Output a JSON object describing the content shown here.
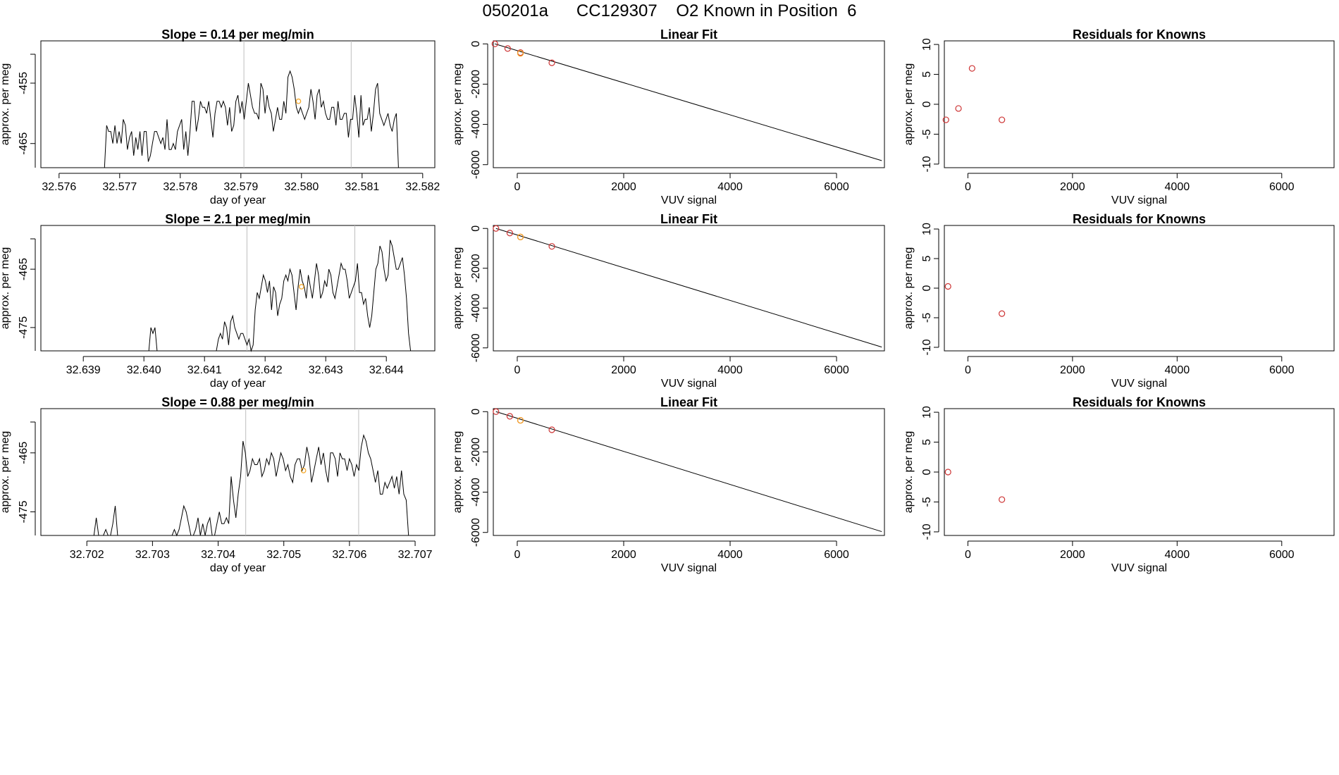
{
  "page": {
    "title": "050201a      CC129307    O2 Known in Position  6"
  },
  "colors": {
    "trace": "#000000",
    "fit_line": "#000000",
    "known": "#cd3333",
    "sample": "#f5a623",
    "marker_line": "#bebebe"
  },
  "chart_data": [
    {
      "type": "line",
      "panel": "row1-timeseries",
      "title": "Slope =  0.14  per meg/min",
      "xlabel": "day of year",
      "ylabel": "approx. per meg",
      "xlim": [
        32.5757,
        32.5822
      ],
      "ylim": [
        -469,
        -448
      ],
      "xticks": [
        "32.576",
        "32.577",
        "32.578",
        "32.579",
        "32.580",
        "32.581",
        "32.582"
      ],
      "xtick_values": [
        32.576,
        32.577,
        32.578,
        32.579,
        32.58,
        32.581,
        32.582
      ],
      "yticks": [
        "-465",
        "-455"
      ],
      "ytick_values": [
        -465,
        -455
      ],
      "vlines": [
        32.57905,
        32.58082
      ],
      "x_start": 32.57675,
      "x_end": 32.5816,
      "series": [
        {
          "values": [
            -469,
            -462,
            -463,
            -463,
            -465,
            -462,
            -465,
            -463,
            -465,
            -461,
            -462,
            -466,
            -464,
            -463,
            -467,
            -464,
            -466,
            -463,
            -467,
            -463,
            -463,
            -468,
            -467,
            -465,
            -463,
            -463,
            -464,
            -465,
            -464,
            -466,
            -461,
            -466,
            -466,
            -465,
            -466,
            -463,
            -462,
            -461,
            -466,
            -463,
            -467,
            -463,
            -458,
            -458,
            -463,
            -461,
            -458,
            -459,
            -459,
            -460,
            -458,
            -461,
            -464,
            -460,
            -458,
            -458,
            -459,
            -458,
            -459,
            -462,
            -459,
            -463,
            -462,
            -458,
            -457,
            -460,
            -458,
            -461,
            -458,
            -455,
            -457,
            -459,
            -460,
            -460,
            -461,
            -455,
            -456,
            -460,
            -457,
            -459,
            -460,
            -463,
            -461,
            -459,
            -461,
            -461,
            -458,
            -460,
            -454,
            -453,
            -454,
            -456,
            -459,
            -460,
            -459,
            -460,
            -461,
            -460,
            -459,
            -456,
            -458,
            -461,
            -457,
            -456,
            -459,
            -458,
            -460,
            -461,
            -461,
            -459,
            -459,
            -462,
            -458,
            -461,
            -461,
            -460,
            -460,
            -464,
            -461,
            -461,
            -457,
            -460,
            -464,
            -457,
            -462,
            -461,
            -461,
            -459,
            -463,
            -460,
            -456,
            -455,
            -460,
            -461,
            -462,
            -461,
            -460,
            -462,
            -463,
            -461,
            -460,
            -469
          ]
        }
      ],
      "sample_point": {
        "x": 32.57995,
        "y": -458
      }
    },
    {
      "type": "scatter",
      "panel": "row1-linear-fit",
      "title": "Linear Fit",
      "xlabel": "VUV signal",
      "ylabel": "approx. per meg",
      "xlim": [
        -450,
        6900
      ],
      "ylim": [
        -6150,
        150
      ],
      "xticks": [
        "0",
        "2000",
        "4000",
        "6000"
      ],
      "xtick_values": [
        0,
        2000,
        4000,
        6000
      ],
      "yticks": [
        "-6000",
        "-4000",
        "-2000",
        "0"
      ],
      "ytick_values": [
        -6000,
        -4000,
        -2000,
        0
      ],
      "fit_line": {
        "x": [
          -420,
          6850
        ],
        "y": [
          0,
          -5800
        ]
      },
      "knowns": {
        "x": [
          -420,
          -180,
          60,
          650
        ],
        "y": [
          0,
          -230,
          -430,
          -940
        ]
      },
      "sample_point": {
        "x": 60,
        "y": -470
      }
    },
    {
      "type": "scatter",
      "panel": "row1-residuals",
      "title": "Residuals for Knowns",
      "xlabel": "VUV signal",
      "ylabel": "approx. per meg",
      "xlim": [
        -450,
        7000
      ],
      "ylim": [
        -10.6,
        10.6
      ],
      "xticks": [
        "0",
        "2000",
        "4000",
        "6000"
      ],
      "xtick_values": [
        0,
        2000,
        4000,
        6000
      ],
      "yticks": [
        "-10",
        "-5",
        "0",
        "5",
        "10"
      ],
      "ytick_values": [
        -10,
        -5,
        0,
        5,
        10
      ],
      "knowns": {
        "x": [
          -420,
          -180,
          80,
          650
        ],
        "y": [
          -2.6,
          -0.7,
          6.0,
          -2.6
        ]
      }
    },
    {
      "type": "line",
      "panel": "row2-timeseries",
      "title": "Slope =  2.1  per meg/min",
      "xlabel": "day of year",
      "ylabel": "approx. per meg",
      "xlim": [
        32.6383,
        32.6448
      ],
      "ylim": [
        -479,
        -457.5
      ],
      "xticks": [
        "32.639",
        "32.640",
        "32.641",
        "32.642",
        "32.643",
        "32.644"
      ],
      "xtick_values": [
        32.639,
        32.64,
        32.641,
        32.642,
        32.643,
        32.644
      ],
      "yticks": [
        "-475",
        "-465"
      ],
      "ytick_values": [
        -475,
        -465
      ],
      "vlines": [
        32.6417,
        32.64348
      ],
      "x_start": 32.6388,
      "x_end": 32.6444,
      "series": [
        {
          "values": [
            -479,
            -479,
            -479,
            -479,
            -479,
            -479,
            -479,
            -479,
            -479,
            -479,
            -479,
            -479,
            -479,
            -479,
            -479,
            -479,
            -479,
            -479,
            -479,
            -479,
            -479,
            -479,
            -479,
            -479,
            -479,
            -479,
            -479,
            -479,
            -479,
            -479,
            -479,
            -479,
            -479,
            -479,
            -479,
            -479,
            -479,
            -479,
            -479,
            -475,
            -476,
            -475,
            -479,
            -479,
            -479,
            -479,
            -479,
            -479,
            -479,
            -479,
            -479,
            -479,
            -479,
            -479,
            -479,
            -479,
            -479,
            -479,
            -479,
            -479,
            -479,
            -479,
            -479,
            -479,
            -479,
            -479,
            -479,
            -479,
            -479,
            -479,
            -479,
            -479,
            -477,
            -476,
            -477,
            -474,
            -475,
            -478,
            -474,
            -473,
            -475,
            -476,
            -477,
            -476,
            -476,
            -477,
            -478,
            -477,
            -479,
            -478,
            -472,
            -469,
            -470,
            -468,
            -466,
            -467,
            -469,
            -467,
            -472,
            -468,
            -469,
            -473,
            -471,
            -470,
            -467,
            -466,
            -467,
            -465,
            -466,
            -469,
            -472,
            -468,
            -465,
            -467,
            -468,
            -470,
            -466,
            -468,
            -470,
            -467,
            -464,
            -466,
            -470,
            -469,
            -467,
            -468,
            -465,
            -466,
            -469,
            -470,
            -468,
            -466,
            -464,
            -465,
            -465,
            -467,
            -470,
            -469,
            -468,
            -467,
            -464,
            -469,
            -469,
            -471,
            -470,
            -473,
            -475,
            -473,
            -469,
            -465,
            -464,
            -461,
            -462,
            -465,
            -467,
            -466,
            -460,
            -461,
            -463,
            -465,
            -465,
            -464,
            -463,
            -466,
            -470,
            -476,
            -479
          ]
        }
      ],
      "sample_point": {
        "x": 32.6426,
        "y": -468
      }
    },
    {
      "type": "scatter",
      "panel": "row2-linear-fit",
      "title": "Linear Fit",
      "xlabel": "VUV signal",
      "ylabel": "approx. per meg",
      "xlim": [
        -450,
        6900
      ],
      "ylim": [
        -6150,
        150
      ],
      "xticks": [
        "0",
        "2000",
        "4000",
        "6000"
      ],
      "xtick_values": [
        0,
        2000,
        4000,
        6000
      ],
      "yticks": [
        "-6000",
        "-4000",
        "-2000",
        "0"
      ],
      "ytick_values": [
        -6000,
        -4000,
        -2000,
        0
      ],
      "fit_line": {
        "x": [
          -400,
          6850
        ],
        "y": [
          0,
          -5960
        ]
      },
      "knowns": {
        "x": [
          -400,
          -140,
          60,
          650
        ],
        "y": [
          0,
          -230,
          -430,
          -900
        ]
      },
      "sample_point": {
        "x": 60,
        "y": -430
      }
    },
    {
      "type": "scatter",
      "panel": "row2-residuals",
      "title": "Residuals for Knowns",
      "xlabel": "VUV signal",
      "ylabel": "approx. per meg",
      "xlim": [
        -450,
        7000
      ],
      "ylim": [
        -10.6,
        10.6
      ],
      "xticks": [
        "0",
        "2000",
        "4000",
        "6000"
      ],
      "xtick_values": [
        0,
        2000,
        4000,
        6000
      ],
      "yticks": [
        "-10",
        "-5",
        "0",
        "5",
        "10"
      ],
      "ytick_values": [
        -10,
        -5,
        0,
        5,
        10
      ],
      "knowns": {
        "x": [
          -380,
          650
        ],
        "y": [
          0.3,
          -4.3
        ]
      }
    },
    {
      "type": "line",
      "panel": "row3-timeseries",
      "title": "Slope =  0.88  per meg/min",
      "xlabel": "day of year",
      "ylabel": "approx. per meg",
      "xlim": [
        32.7013,
        32.7073
      ],
      "ylim": [
        -479,
        -457.5
      ],
      "xticks": [
        "32.702",
        "32.703",
        "32.704",
        "32.705",
        "32.706",
        "32.707"
      ],
      "xtick_values": [
        32.702,
        32.703,
        32.704,
        32.705,
        32.706,
        32.707
      ],
      "yticks": [
        "-475",
        "-465"
      ],
      "ytick_values": [
        -475,
        -465
      ],
      "vlines": [
        32.70442,
        32.70614
      ],
      "x_start": 32.702,
      "x_end": 32.7069,
      "series": [
        {
          "values": [
            -479,
            -479,
            -479,
            -479,
            -476,
            -479,
            -479,
            -479,
            -478,
            -479,
            -479,
            -477,
            -474,
            -479,
            -479,
            -479,
            -479,
            -479,
            -479,
            -479,
            -479,
            -479,
            -479,
            -479,
            -479,
            -479,
            -479,
            -479,
            -479,
            -479,
            -479,
            -479,
            -479,
            -479,
            -479,
            -479,
            -479,
            -478,
            -479,
            -478,
            -476,
            -474,
            -475,
            -477,
            -479,
            -479,
            -478,
            -476,
            -479,
            -477,
            -479,
            -477,
            -476,
            -479,
            -479,
            -477,
            -475,
            -477,
            -477,
            -476,
            -477,
            -469,
            -473,
            -476,
            -472,
            -469,
            -463,
            -465,
            -469,
            -468,
            -466,
            -467,
            -467,
            -466,
            -469,
            -468,
            -466,
            -467,
            -465,
            -466,
            -469,
            -467,
            -465,
            -466,
            -468,
            -467,
            -469,
            -470,
            -467,
            -466,
            -466,
            -468,
            -467,
            -464,
            -466,
            -470,
            -468,
            -466,
            -464,
            -467,
            -465,
            -468,
            -470,
            -465,
            -465,
            -466,
            -469,
            -465,
            -466,
            -466,
            -468,
            -466,
            -467,
            -469,
            -467,
            -468,
            -464,
            -462,
            -463,
            -465,
            -466,
            -468,
            -470,
            -468,
            -472,
            -472,
            -470,
            -471,
            -470,
            -469,
            -471,
            -469,
            -472,
            -468,
            -472,
            -473,
            -479
          ]
        }
      ],
      "sample_point": {
        "x": 32.7053,
        "y": -468
      }
    },
    {
      "type": "scatter",
      "panel": "row3-linear-fit",
      "title": "Linear Fit",
      "xlabel": "VUV signal",
      "ylabel": "approx. per meg",
      "xlim": [
        -450,
        6900
      ],
      "ylim": [
        -6150,
        150
      ],
      "xticks": [
        "0",
        "2000",
        "4000",
        "6000"
      ],
      "xtick_values": [
        0,
        2000,
        4000,
        6000
      ],
      "yticks": [
        "-6000",
        "-4000",
        "-2000",
        "0"
      ],
      "ytick_values": [
        -6000,
        -4000,
        -2000,
        0
      ],
      "fit_line": {
        "x": [
          -400,
          6850
        ],
        "y": [
          0,
          -5960
        ]
      },
      "knowns": {
        "x": [
          -400,
          -140,
          60,
          650
        ],
        "y": [
          0,
          -230,
          -430,
          -900
        ]
      },
      "sample_point": {
        "x": 60,
        "y": -430
      }
    },
    {
      "type": "scatter",
      "panel": "row3-residuals",
      "title": "Residuals for Knowns",
      "xlabel": "VUV signal",
      "ylabel": "approx. per meg",
      "xlim": [
        -450,
        7000
      ],
      "ylim": [
        -10.6,
        10.6
      ],
      "xticks": [
        "0",
        "2000",
        "4000",
        "6000"
      ],
      "xtick_values": [
        0,
        2000,
        4000,
        6000
      ],
      "yticks": [
        "-10",
        "-5",
        "0",
        "5",
        "10"
      ],
      "ytick_values": [
        -10,
        -5,
        0,
        5,
        10
      ],
      "knowns": {
        "x": [
          -380,
          650
        ],
        "y": [
          0.0,
          -4.6
        ]
      }
    }
  ]
}
